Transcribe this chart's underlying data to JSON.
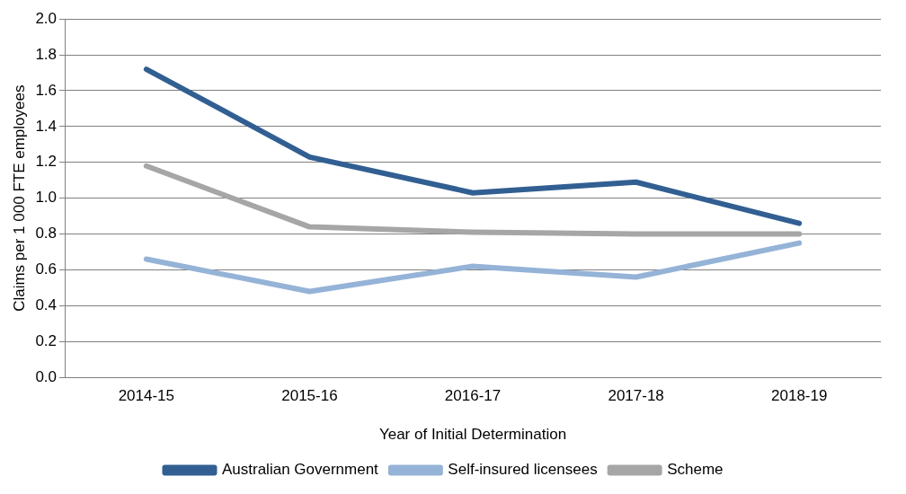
{
  "chart_data": {
    "type": "line",
    "xlabel": "Year of Initial Determination",
    "ylabel": "Claims per 1 000 FTE employees",
    "categories": [
      "2014-15",
      "2015-16",
      "2016-17",
      "2017-18",
      "2018-19"
    ],
    "series": [
      {
        "name": "Australian Government",
        "color": "#325f92",
        "values": [
          1.72,
          1.23,
          1.03,
          1.09,
          0.86
        ]
      },
      {
        "name": "Self-insured licensees",
        "color": "#95b3d7",
        "values": [
          0.66,
          0.48,
          0.62,
          0.56,
          0.75
        ]
      },
      {
        "name": "Scheme",
        "color": "#a6a6a6",
        "values": [
          1.18,
          0.84,
          0.81,
          0.8,
          0.8
        ]
      }
    ],
    "ylim": [
      0,
      2
    ],
    "yticks": [
      {
        "value": 0,
        "label": "0.0"
      },
      {
        "value": 0.2,
        "label": "0.2"
      },
      {
        "value": 0.4,
        "label": "0.4"
      },
      {
        "value": 0.6,
        "label": "0.6"
      },
      {
        "value": 0.8,
        "label": "0.8"
      },
      {
        "value": 1,
        "label": "1.0"
      },
      {
        "value": 1.2,
        "label": "1.2"
      },
      {
        "value": 1.4,
        "label": "1.4"
      },
      {
        "value": 1.6,
        "label": "1.6"
      },
      {
        "value": 1.8,
        "label": "1.8"
      },
      {
        "value": 2,
        "label": "2.0"
      }
    ],
    "grid": "y",
    "legend": "bottom",
    "marker": "none",
    "line_style": "solid"
  }
}
